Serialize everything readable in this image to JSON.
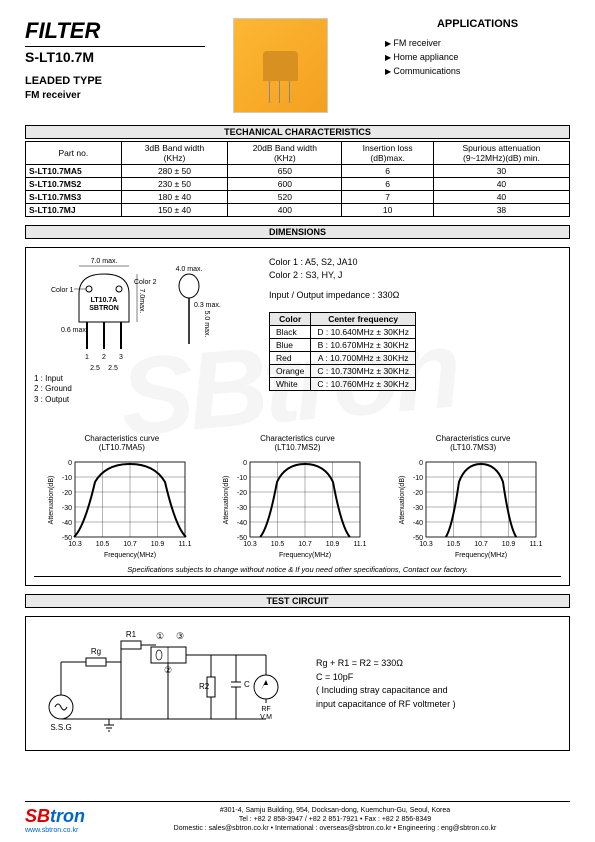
{
  "header": {
    "title": "FILTER",
    "model": "S-LT10.7M",
    "type": "LEADED TYPE",
    "appNote": "FM receiver",
    "appsTitle": "APPLICATIONS",
    "apps": [
      "FM receiver",
      "Home appliance",
      "Communications"
    ]
  },
  "techTitle": "TECHANICAL CHARACTERISTICS",
  "techCols": [
    "Part no.",
    "3dB Band width\n(KHz)",
    "20dB Band width\n(KHz)",
    "Insertion loss\n(dB)max.",
    "Spurious attenuation\n(9~12MHz)(dB) min."
  ],
  "techRows": [
    [
      "S-LT10.7MA5",
      "280 ± 50",
      "650",
      "6",
      "30"
    ],
    [
      "S-LT10.7MS2",
      "230 ± 50",
      "600",
      "6",
      "40"
    ],
    [
      "S-LT10.7MS3",
      "180 ± 40",
      "520",
      "7",
      "40"
    ],
    [
      "S-LT10.7MJ",
      "150 ± 40",
      "400",
      "10",
      "38"
    ]
  ],
  "dimsTitle": "DIMENSIONS",
  "dims": {
    "w": "7.0 max.",
    "cap_w": "4.0 max.",
    "h": "7.0max.",
    "cap_h": "5.0 max.",
    "lead_sp": "2.5",
    "lead_t": "0.6 max.",
    "cap_lead": "0.3 max.",
    "marking1": "LT10.7A",
    "marking2": "SBTRON",
    "color1lbl": "Color 1",
    "color2lbl": "Color 2",
    "pins": "1 : Input\n2 : Ground\n3 : Output",
    "colorNote1": "Color 1 : A5, S2, JA10",
    "colorNote2": "Color 2 : S3, HY, J",
    "impedance": "Input / Output impedance : 330Ω"
  },
  "colorCols": [
    "Color",
    "Center frequency"
  ],
  "colorRows": [
    [
      "Black",
      "D : 10.640MHz ± 30KHz"
    ],
    [
      "Blue",
      "B : 10.670MHz ± 30KHz"
    ],
    [
      "Red",
      "A : 10.700MHz ± 30KHz"
    ],
    [
      "Orange",
      "C : 10.730MHz ± 30KHz"
    ],
    [
      "White",
      "C : 10.760MHz ± 30KHz"
    ]
  ],
  "curves": [
    {
      "title": "Characteristics curve\n(LT10.7MA5)",
      "width": 0.35
    },
    {
      "title": "Characteristics curve\n(LT10.7MS2)",
      "width": 0.28
    },
    {
      "title": "Characteristics curve\n(LT10.7MS3)",
      "width": 0.22
    }
  ],
  "curveAxis": {
    "xlabel": "Frequency(MHz)",
    "ylabel": "Attenuation(dB)",
    "xticks": [
      "10.3",
      "10.5",
      "10.7",
      "10.9",
      "11.1"
    ],
    "yticks": [
      "0",
      "-10",
      "-20",
      "-30",
      "-40",
      "-50"
    ]
  },
  "specNote": "Specifications subjects to change without notice & If you need other specifications, Contact our factory.",
  "testTitle": "TEST CIRCUIT",
  "test": {
    "r1": "R1",
    "rg": "Rg",
    "r2": "R2",
    "c": "C",
    "ssg": "S.S.G",
    "rf": "RF\nV.M",
    "pins": [
      "①",
      "②",
      "③"
    ],
    "note1": "Rg + R1 = R2 = 330Ω",
    "note2": "C = 10pF",
    "note3": "( Including stray capacitance  and",
    "note4": "input capacitance of RF voltmeter )"
  },
  "footer": {
    "logo1": "SB",
    "logo2": "tron",
    "url": "www.sbtron.co.kr",
    "addr": "#301-4, Samju Building, 954, Docksan-dong, Kuemchun-Gu, Seoul, Korea",
    "tel": "Tel : +82 2 858-3947 / +82 2 851-7921 • Fax : +82 2 856-8349",
    "email": "Domestic : sales@sbtron.co.kr • International : overseas@sbtron.co.kr • Engineering : eng@sbtron.co.kr"
  },
  "watermark": "SBtron"
}
